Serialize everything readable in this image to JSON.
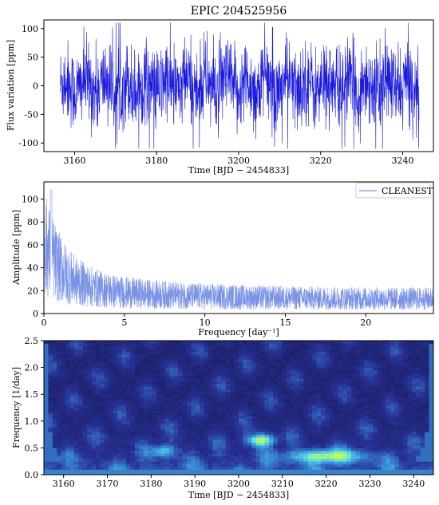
{
  "figure_title": "EPIC 204525956",
  "chart_data": [
    {
      "type": "line",
      "title": "EPIC 204525956",
      "xlabel": "Time [BJD − 2454833]",
      "ylabel": "Flux variation [ppm]",
      "xlim": [
        3152.5,
        3247.5
      ],
      "ylim": [
        -115,
        115
      ],
      "xticks": [
        3160,
        3180,
        3200,
        3220,
        3240
      ],
      "yticks": [
        -100,
        -50,
        0,
        50,
        100
      ],
      "x_range": [
        3156.5,
        3244.0
      ],
      "amplitude_typical": 40,
      "amplitude_peak": 110,
      "color": "#1a1adb",
      "legend": "none"
    },
    {
      "type": "line",
      "title": "",
      "xlabel": "Frequency [day⁻¹]",
      "ylabel": "Amplitude [ppm]",
      "xlim": [
        0,
        24.2
      ],
      "ylim": [
        0,
        115
      ],
      "xticks": [
        0,
        5,
        10,
        15,
        20
      ],
      "yticks": [
        0,
        20,
        40,
        60,
        80,
        100
      ],
      "series": [
        {
          "name": "CLEANEST",
          "color": "#7b93e6"
        }
      ],
      "peak": {
        "x": 0.45,
        "y": 108
      },
      "noise_floor": 15,
      "legend": "top-right"
    },
    {
      "type": "heatmap",
      "title": "",
      "xlabel": "Time [BJD − 2454833]",
      "ylabel": "Frequency [1/day]",
      "xlim": [
        3155.5,
        3244.5
      ],
      "ylim": [
        0,
        2.5
      ],
      "xticks": [
        3160,
        3170,
        3180,
        3190,
        3200,
        3210,
        3220,
        3230,
        3240
      ],
      "yticks": [
        0.0,
        0.5,
        1.0,
        1.5,
        2.0,
        2.5
      ],
      "features": [
        {
          "x": 3205,
          "y": 0.65,
          "strength": 1.0
        },
        {
          "x": 3220,
          "y": 0.35,
          "strength": 0.85
        },
        {
          "x": 3183,
          "y": 0.45,
          "strength": 0.55
        }
      ]
    }
  ]
}
